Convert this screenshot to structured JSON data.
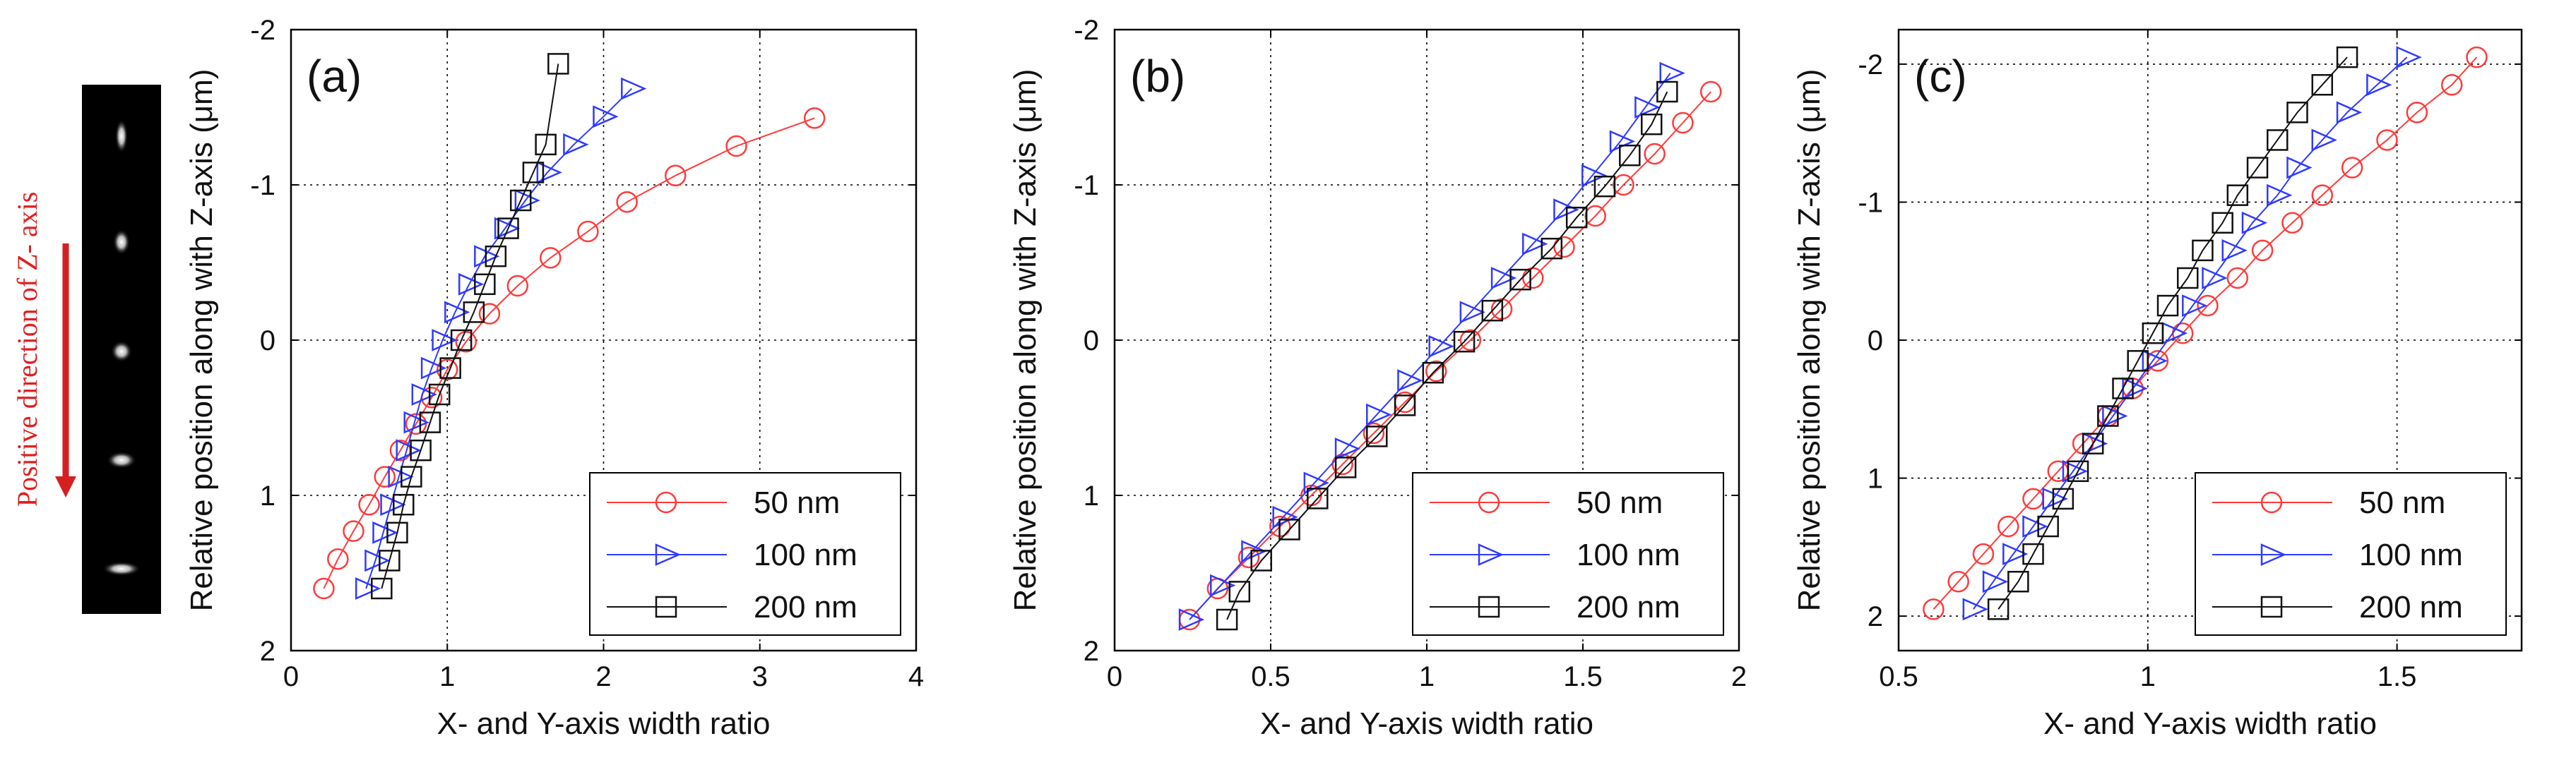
{
  "figure": {
    "inset": {
      "caption": "Positive direction of  Z- axis",
      "caption_color": "#e02020",
      "arrow_color": "#d42020",
      "background": "#000000"
    },
    "colors": {
      "series_50": "#ff3b3b",
      "series_100": "#2f3bff",
      "series_200": "#111111",
      "grid": "#000000"
    }
  },
  "chart_data": [
    {
      "type": "line",
      "panel_label": "(a)",
      "xlabel": "X- and Y-axis width ratio",
      "ylabel": "Relative position along with Z-axis (μm)",
      "xlim": [
        0,
        4
      ],
      "ylim": [
        2,
        -2
      ],
      "y_reversed": true,
      "x_ticks": [
        0,
        1,
        2,
        3,
        4
      ],
      "x_tick_labels": [
        "0",
        "1",
        "2",
        "3",
        "4"
      ],
      "y_ticks": [
        -2,
        -1,
        0,
        1,
        2
      ],
      "y_tick_labels": [
        "-2",
        "-1",
        "0",
        "1",
        "2"
      ],
      "grid": true,
      "legend_position": "bottom-right",
      "series": [
        {
          "name": "50 nm",
          "marker": "circle",
          "color": "#ff3b3b",
          "x": [
            0.21,
            0.3,
            0.4,
            0.5,
            0.6,
            0.7,
            0.8,
            0.9,
            1.0,
            1.12,
            1.27,
            1.45,
            1.66,
            1.9,
            2.15,
            2.46,
            2.85,
            3.35
          ],
          "y": [
            1.6,
            1.41,
            1.23,
            1.06,
            0.88,
            0.71,
            0.54,
            0.37,
            0.19,
            0.01,
            -0.17,
            -0.35,
            -0.53,
            -0.7,
            -0.89,
            -1.06,
            -1.25,
            -1.43
          ]
        },
        {
          "name": "100 nm",
          "marker": "triangle-right",
          "color": "#2f3bff",
          "x": [
            0.48,
            0.54,
            0.59,
            0.64,
            0.69,
            0.74,
            0.79,
            0.84,
            0.9,
            0.97,
            1.05,
            1.14,
            1.24,
            1.37,
            1.5,
            1.64,
            1.81,
            2.0,
            2.18
          ],
          "y": [
            1.6,
            1.42,
            1.24,
            1.06,
            0.88,
            0.71,
            0.53,
            0.35,
            0.18,
            0.0,
            -0.18,
            -0.36,
            -0.54,
            -0.72,
            -0.9,
            -1.08,
            -1.26,
            -1.44,
            -1.62
          ]
        },
        {
          "name": "200 nm",
          "marker": "square",
          "color": "#111111",
          "x": [
            0.58,
            0.63,
            0.68,
            0.72,
            0.77,
            0.83,
            0.89,
            0.95,
            1.02,
            1.09,
            1.17,
            1.24,
            1.31,
            1.39,
            1.47,
            1.55,
            1.63,
            1.71
          ],
          "y": [
            1.6,
            1.42,
            1.24,
            1.06,
            0.88,
            0.71,
            0.53,
            0.35,
            0.18,
            0.0,
            -0.18,
            -0.36,
            -0.54,
            -0.72,
            -0.9,
            -1.08,
            -1.26,
            -1.78
          ]
        }
      ],
      "legend": [
        "50 nm",
        "100 nm",
        "200 nm"
      ]
    },
    {
      "type": "line",
      "panel_label": "(b)",
      "xlabel": "X- and Y-axis width ratio",
      "ylabel": "Relative position along with Z-axis (μm)",
      "xlim": [
        0,
        2
      ],
      "ylim": [
        2,
        -2
      ],
      "y_reversed": true,
      "x_ticks": [
        0,
        0.5,
        1,
        1.5,
        2
      ],
      "x_tick_labels": [
        "0",
        "0.5",
        "1",
        "1.5",
        "2"
      ],
      "y_ticks": [
        -2,
        -1,
        0,
        1,
        2
      ],
      "y_tick_labels": [
        "-2",
        "-1",
        "0",
        "1",
        "2"
      ],
      "grid": true,
      "legend_position": "bottom-right",
      "series": [
        {
          "name": "50 nm",
          "marker": "circle",
          "color": "#ff3b3b",
          "x": [
            0.24,
            0.33,
            0.43,
            0.53,
            0.63,
            0.73,
            0.83,
            0.93,
            1.03,
            1.14,
            1.24,
            1.34,
            1.44,
            1.54,
            1.63,
            1.73,
            1.82,
            1.91
          ],
          "y": [
            1.8,
            1.6,
            1.4,
            1.2,
            1.0,
            0.8,
            0.6,
            0.4,
            0.2,
            0.0,
            -0.2,
            -0.4,
            -0.6,
            -0.8,
            -1.0,
            -1.2,
            -1.4,
            -1.6
          ]
        },
        {
          "name": "100 nm",
          "marker": "triangle-right",
          "color": "#2f3bff",
          "x": [
            0.24,
            0.34,
            0.44,
            0.54,
            0.64,
            0.74,
            0.84,
            0.94,
            1.04,
            1.14,
            1.24,
            1.34,
            1.44,
            1.53,
            1.62,
            1.7,
            1.78
          ],
          "y": [
            1.8,
            1.58,
            1.36,
            1.14,
            0.92,
            0.7,
            0.48,
            0.26,
            0.04,
            -0.18,
            -0.4,
            -0.62,
            -0.84,
            -1.06,
            -1.28,
            -1.5,
            -1.72
          ]
        },
        {
          "name": "200 nm",
          "marker": "square",
          "color": "#111111",
          "x": [
            0.36,
            0.4,
            0.47,
            0.56,
            0.65,
            0.74,
            0.84,
            0.93,
            1.02,
            1.12,
            1.21,
            1.3,
            1.4,
            1.48,
            1.57,
            1.65,
            1.72,
            1.77
          ],
          "y": [
            1.8,
            1.62,
            1.42,
            1.22,
            1.02,
            0.82,
            0.62,
            0.42,
            0.21,
            0.01,
            -0.19,
            -0.39,
            -0.59,
            -0.79,
            -0.99,
            -1.19,
            -1.39,
            -1.6
          ]
        }
      ],
      "legend": [
        "50 nm",
        "100 nm",
        "200 nm"
      ]
    },
    {
      "type": "line",
      "panel_label": "(c)",
      "xlabel": "X- and Y-axis width ratio",
      "ylabel": "Relative position along with Z-axis (μm)",
      "xlim": [
        0.5,
        1.75
      ],
      "ylim": [
        2.25,
        -2.25
      ],
      "y_reversed": true,
      "x_ticks": [
        0.5,
        1,
        1.5
      ],
      "x_tick_labels": [
        "0.5",
        "1",
        "1.5"
      ],
      "y_ticks": [
        -2,
        -1,
        0,
        1,
        2
      ],
      "y_tick_labels": [
        "-2",
        "-1",
        "0",
        "1",
        "2"
      ],
      "grid": true,
      "legend_position": "bottom-right",
      "series": [
        {
          "name": "50 nm",
          "marker": "circle",
          "color": "#ff3b3b",
          "x": [
            0.57,
            0.62,
            0.67,
            0.72,
            0.77,
            0.82,
            0.87,
            0.92,
            0.97,
            1.02,
            1.07,
            1.12,
            1.18,
            1.23,
            1.29,
            1.35,
            1.41,
            1.48,
            1.54,
            1.61,
            1.66
          ],
          "y": [
            1.95,
            1.75,
            1.55,
            1.35,
            1.15,
            0.95,
            0.75,
            0.55,
            0.35,
            0.15,
            -0.05,
            -0.25,
            -0.45,
            -0.65,
            -0.85,
            -1.05,
            -1.25,
            -1.45,
            -1.65,
            -1.85,
            -2.05
          ]
        },
        {
          "name": "100 nm",
          "marker": "triangle-right",
          "color": "#2f3bff",
          "x": [
            0.65,
            0.69,
            0.73,
            0.77,
            0.81,
            0.85,
            0.89,
            0.93,
            0.97,
            1.01,
            1.05,
            1.09,
            1.13,
            1.17,
            1.21,
            1.26,
            1.3,
            1.35,
            1.4,
            1.46,
            1.52
          ],
          "y": [
            1.95,
            1.75,
            1.55,
            1.35,
            1.15,
            0.95,
            0.75,
            0.55,
            0.35,
            0.15,
            -0.05,
            -0.25,
            -0.45,
            -0.65,
            -0.85,
            -1.05,
            -1.25,
            -1.45,
            -1.65,
            -1.85,
            -2.05
          ]
        },
        {
          "name": "200 nm",
          "marker": "square",
          "color": "#111111",
          "x": [
            0.7,
            0.74,
            0.77,
            0.8,
            0.83,
            0.86,
            0.89,
            0.92,
            0.95,
            0.98,
            1.01,
            1.04,
            1.08,
            1.11,
            1.15,
            1.18,
            1.22,
            1.26,
            1.3,
            1.35,
            1.4
          ],
          "y": [
            1.95,
            1.75,
            1.55,
            1.35,
            1.15,
            0.95,
            0.75,
            0.55,
            0.35,
            0.15,
            -0.05,
            -0.25,
            -0.45,
            -0.65,
            -0.85,
            -1.05,
            -1.25,
            -1.45,
            -1.65,
            -1.85,
            -2.05
          ]
        }
      ],
      "legend": [
        "50 nm",
        "100 nm",
        "200 nm"
      ]
    }
  ]
}
